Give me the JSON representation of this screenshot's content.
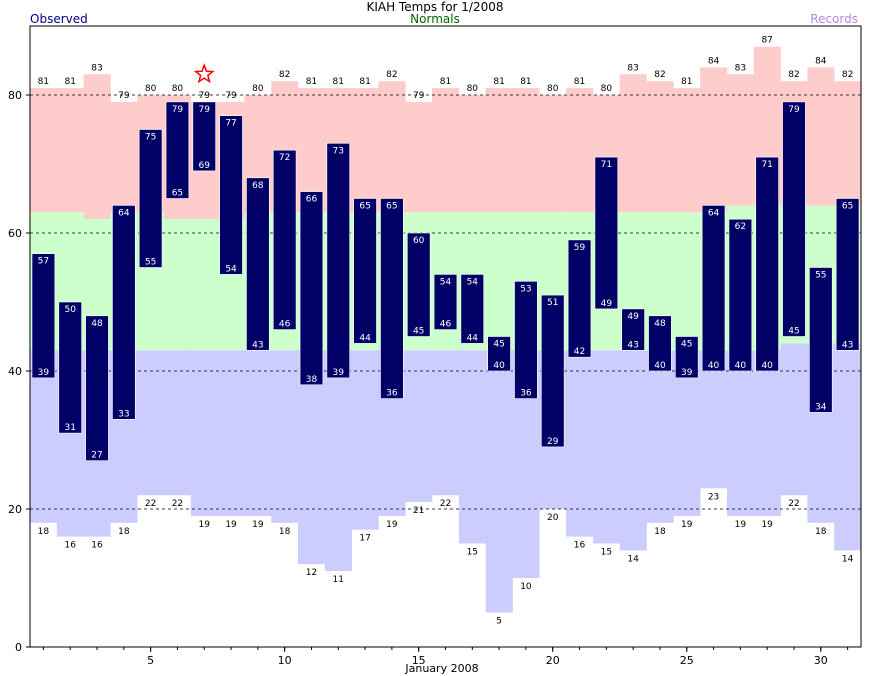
{
  "title": "KIAH Temps for 1/2008",
  "legend": {
    "observed": "Observed",
    "normals": "Normals",
    "records": "Records"
  },
  "colors": {
    "observed_bar": "#000066",
    "normal_high_band": "#ffcccc",
    "normal_mid_band": "#ccffcc",
    "normal_low_band": "#ccccff",
    "record_band": "#ffcccc",
    "record_low_band": "#ccccff",
    "star": "#ff0000",
    "observed_text": "#000080",
    "normals_text": "#006400",
    "records_text": "#b388e0"
  },
  "chart_data": {
    "type": "bar",
    "title": "KIAH Temps for 1/2008",
    "xlabel": "January 2008",
    "ylabel": "",
    "xlim": [
      1,
      31
    ],
    "ylim": [
      0,
      90
    ],
    "x_ticks": [
      5,
      10,
      15,
      20,
      25,
      30
    ],
    "y_ticks": [
      0,
      20,
      40,
      60,
      80
    ],
    "gridlines_y": [
      20,
      40,
      60,
      80
    ],
    "days": [
      1,
      2,
      3,
      4,
      5,
      6,
      7,
      8,
      9,
      10,
      11,
      12,
      13,
      14,
      15,
      16,
      17,
      18,
      19,
      20,
      21,
      22,
      23,
      24,
      25,
      26,
      27,
      28,
      29,
      30,
      31
    ],
    "observed_high": [
      57,
      50,
      48,
      64,
      75,
      79,
      79,
      77,
      68,
      72,
      66,
      73,
      65,
      65,
      60,
      54,
      54,
      45,
      53,
      51,
      59,
      71,
      49,
      48,
      45,
      64,
      62,
      71,
      79,
      55,
      65
    ],
    "observed_low": [
      39,
      31,
      27,
      33,
      55,
      65,
      69,
      54,
      43,
      46,
      38,
      39,
      44,
      36,
      45,
      46,
      44,
      40,
      36,
      29,
      42,
      49,
      43,
      40,
      39,
      40,
      40,
      40,
      45,
      34,
      43
    ],
    "record_high": [
      81,
      81,
      83,
      79,
      80,
      80,
      79,
      79,
      80,
      82,
      81,
      81,
      81,
      82,
      79,
      81,
      80,
      81,
      81,
      80,
      81,
      80,
      83,
      82,
      81,
      84,
      83,
      87,
      82,
      84,
      82
    ],
    "record_low": [
      18,
      16,
      16,
      18,
      22,
      22,
      19,
      19,
      19,
      18,
      12,
      11,
      17,
      19,
      21,
      22,
      15,
      5,
      10,
      20,
      16,
      15,
      14,
      18,
      19,
      23,
      19,
      19,
      22,
      18,
      14
    ],
    "normal_high": 63,
    "normal_high_by_day": [
      63,
      63,
      62,
      63,
      63,
      62,
      62,
      62,
      63,
      63,
      63,
      63,
      63,
      63,
      63,
      63,
      63,
      63,
      63,
      63,
      63,
      63,
      63,
      63,
      63,
      63,
      64,
      64,
      64,
      64,
      64
    ],
    "normal_low": 43,
    "normal_low_by_day": [
      43,
      43,
      43,
      43,
      43,
      43,
      43,
      43,
      43,
      43,
      43,
      43,
      43,
      43,
      43,
      43,
      43,
      43,
      43,
      43,
      43,
      43,
      43,
      43,
      43,
      43,
      43,
      43,
      44,
      44,
      44
    ],
    "star_day": 7,
    "star_value": 83
  }
}
